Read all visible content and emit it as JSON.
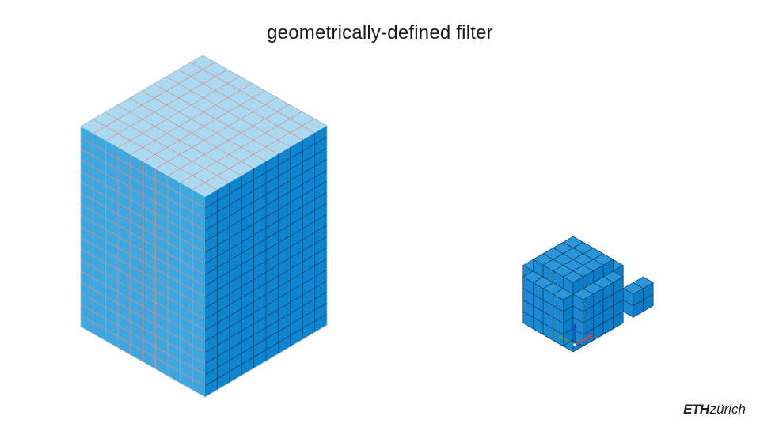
{
  "slide": {
    "title": "geometrically-defined filter"
  },
  "logo": {
    "text_bold": "ETH",
    "text_regular": "zürich"
  },
  "colors": {
    "top_face": "#abdaf0",
    "left_face": "#3ea7de",
    "right_face": "#0f84cf",
    "grid_line_big": "#d98a8a",
    "voxel_outline": "#0b3f6a",
    "axis_x": "#e53935",
    "axis_y": "#43a047",
    "axis_z": "#1e3fd8"
  },
  "icons": {
    "large_shape": "voxel-box-icon",
    "small_shape": "voxel-sphere-icon",
    "axes": "xyz-axes-icon"
  }
}
